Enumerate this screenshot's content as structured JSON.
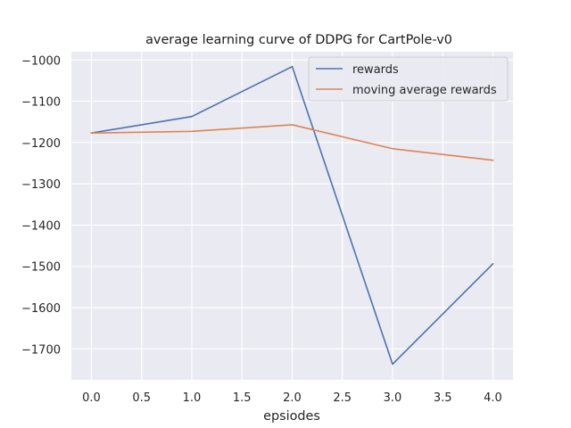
{
  "chart_data": {
    "type": "line",
    "title": "average learning curve of DDPG for CartPole-v0",
    "xlabel": "epsiodes",
    "ylabel": "",
    "x": [
      0,
      1,
      2,
      3,
      4
    ],
    "xlim": [
      -0.2,
      4.2
    ],
    "ylim": [
      -1775,
      -980
    ],
    "x_ticks": [
      "0.0",
      "0.5",
      "1.0",
      "1.5",
      "2.0",
      "2.5",
      "3.0",
      "3.5",
      "4.0"
    ],
    "y_ticks": [
      "−1000",
      "−1100",
      "−1200",
      "−1300",
      "−1400",
      "−1500",
      "−1600",
      "−1700"
    ],
    "grid": true,
    "legend_position": "top-right",
    "series": [
      {
        "name": "rewards",
        "color": "#4c72b0",
        "values": [
          -1177,
          -1137,
          -1016,
          -1737,
          -1494
        ]
      },
      {
        "name": "moving average rewards",
        "color": "#dd8452",
        "values": [
          -1177,
          -1173,
          -1157,
          -1215,
          -1243
        ]
      }
    ]
  }
}
